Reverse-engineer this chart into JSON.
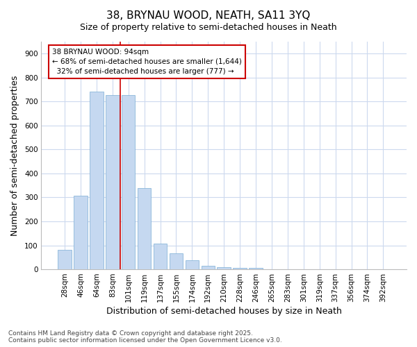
{
  "title": "38, BRYNAU WOOD, NEATH, SA11 3YQ",
  "subtitle": "Size of property relative to semi-detached houses in Neath",
  "xlabel": "Distribution of semi-detached houses by size in Neath",
  "ylabel": "Number of semi-detached properties",
  "categories": [
    "28sqm",
    "46sqm",
    "64sqm",
    "83sqm",
    "101sqm",
    "119sqm",
    "137sqm",
    "155sqm",
    "174sqm",
    "192sqm",
    "210sqm",
    "228sqm",
    "246sqm",
    "265sqm",
    "283sqm",
    "301sqm",
    "319sqm",
    "337sqm",
    "356sqm",
    "374sqm",
    "392sqm"
  ],
  "values": [
    80,
    308,
    742,
    728,
    728,
    340,
    108,
    68,
    38,
    14,
    10,
    7,
    5,
    0,
    0,
    0,
    0,
    0,
    0,
    0,
    0
  ],
  "bar_color": "#c5d8f0",
  "bar_edge_color": "#7badd4",
  "red_line_x": 3.5,
  "highlight_color": "#cc0000",
  "ylim": [
    0,
    950
  ],
  "yticks": [
    0,
    100,
    200,
    300,
    400,
    500,
    600,
    700,
    800,
    900
  ],
  "annotation_title": "38 BRYNAU WOOD: 94sqm",
  "annotation_line1": "← 68% of semi-detached houses are smaller (1,644)",
  "annotation_line2": "  32% of semi-detached houses are larger (777) →",
  "annotation_box_color": "#ffffff",
  "annotation_box_edge_color": "#cc0000",
  "footer_text": "Contains HM Land Registry data © Crown copyright and database right 2025.\nContains public sector information licensed under the Open Government Licence v3.0.",
  "bg_color": "#ffffff",
  "grid_color": "#ccd9ee",
  "title_fontsize": 11,
  "subtitle_fontsize": 9,
  "axis_label_fontsize": 9,
  "tick_fontsize": 7.5,
  "annotation_fontsize": 7.5,
  "footer_fontsize": 6.5
}
